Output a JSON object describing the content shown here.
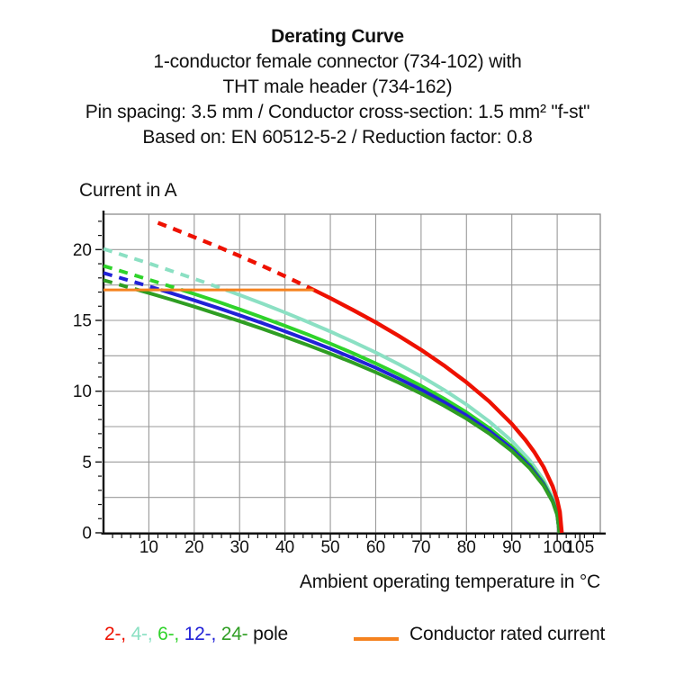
{
  "title": {
    "line1": "Derating Curve",
    "line2": "1-conductor female connector (734-102) with",
    "line3": "THT male header (734-162)",
    "line4": "Pin spacing: 3.5 mm / Conductor cross-section: 1.5 mm² \"f-st\"",
    "line5": "Based on: EN 60512-5-2 / Reduction factor: 0.8"
  },
  "legend": {
    "poles": [
      {
        "label": "2-,",
        "color": "#ee1100"
      },
      {
        "label": "4-,",
        "color": "#8be0c3"
      },
      {
        "label": "6-,",
        "color": "#2fd32a"
      },
      {
        "label": "12-,",
        "color": "#2121d7"
      },
      {
        "label": "24-",
        "color": "#2f9e23"
      }
    ],
    "poles_suffix": " pole",
    "rated_label": "Conductor rated current",
    "rated_color": "#f5821f"
  },
  "chart_data": {
    "type": "line",
    "title": "Derating Curve",
    "xlabel": "Ambient operating temperature in °C",
    "ylabel": "Current in A",
    "xlim": [
      0,
      109.5
    ],
    "ylim": [
      0,
      22.5
    ],
    "grid": "on",
    "grid_color": "#999999",
    "border_color": "#8c8c8c",
    "axis_color": "#111111",
    "text_color": "#111111",
    "tick_font_px": 19,
    "x_gridlines": [
      10,
      20,
      30,
      40,
      50,
      60,
      70,
      80,
      90,
      100
    ],
    "y_gridlines": [
      2.5,
      5,
      7.5,
      10,
      12.5,
      15,
      17.5,
      20
    ],
    "x_major_ticks": [
      10,
      20,
      30,
      40,
      50,
      60,
      70,
      80,
      90,
      100,
      105
    ],
    "x_minor_step": 2,
    "y_major_ticks": [
      0,
      5,
      10,
      15,
      20
    ],
    "y_minor_step": 1,
    "dash_pattern": "10 8",
    "dash_above_rated": true,
    "rated_current": {
      "label": "Conductor rated current",
      "value": 17.15,
      "x_start": 0,
      "x_end": 46.35,
      "color": "#f5821f",
      "width": 3
    },
    "series": [
      {
        "name": "4-pole",
        "color": "#8be0c3",
        "width": 4,
        "points": [
          [
            0,
            20.05
          ],
          [
            5,
            19.54
          ],
          [
            10,
            19.03
          ],
          [
            15,
            18.49
          ],
          [
            20,
            17.94
          ],
          [
            26.97,
            17.15
          ],
          [
            30,
            16.79
          ],
          [
            35,
            16.19
          ],
          [
            40,
            15.56
          ],
          [
            45,
            14.9
          ],
          [
            50,
            14.21
          ],
          [
            55,
            13.49
          ],
          [
            60,
            12.73
          ],
          [
            65,
            11.92
          ],
          [
            70,
            11.05
          ],
          [
            75,
            10.1
          ],
          [
            80,
            9.06
          ],
          [
            85,
            7.87
          ],
          [
            90,
            6.48
          ],
          [
            94,
            5.1
          ],
          [
            97,
            3.74
          ],
          [
            99,
            2.45
          ],
          [
            100,
            1.41
          ],
          [
            100.5,
            0
          ]
        ]
      },
      {
        "name": "6-pole",
        "color": "#2fd32a",
        "width": 4,
        "points": [
          [
            0,
            18.85
          ],
          [
            5,
            18.37
          ],
          [
            10,
            17.88
          ],
          [
            17.28,
            17.15
          ],
          [
            20,
            16.87
          ],
          [
            25,
            16.34
          ],
          [
            30,
            15.78
          ],
          [
            35,
            15.21
          ],
          [
            40,
            14.62
          ],
          [
            45,
            14.01
          ],
          [
            50,
            13.36
          ],
          [
            55,
            12.68
          ],
          [
            60,
            11.96
          ],
          [
            65,
            11.2
          ],
          [
            70,
            10.38
          ],
          [
            75,
            9.49
          ],
          [
            80,
            8.51
          ],
          [
            85,
            7.4
          ],
          [
            90,
            6.09
          ],
          [
            94,
            4.79
          ],
          [
            97,
            3.52
          ],
          [
            99,
            2.3
          ],
          [
            100,
            1.33
          ],
          [
            100.5,
            0
          ]
        ]
      },
      {
        "name": "12-pole",
        "color": "#2121d7",
        "width": 4,
        "points": [
          [
            0,
            18.35
          ],
          [
            5,
            17.88
          ],
          [
            10,
            17.41
          ],
          [
            12.68,
            17.15
          ],
          [
            15,
            16.92
          ],
          [
            20,
            16.42
          ],
          [
            25,
            15.9
          ],
          [
            30,
            15.36
          ],
          [
            35,
            14.81
          ],
          [
            40,
            14.23
          ],
          [
            45,
            13.63
          ],
          [
            50,
            13.0
          ],
          [
            55,
            12.34
          ],
          [
            60,
            11.65
          ],
          [
            65,
            10.9
          ],
          [
            70,
            10.11
          ],
          [
            75,
            9.24
          ],
          [
            80,
            8.29
          ],
          [
            85,
            7.2
          ],
          [
            90,
            5.93
          ],
          [
            94,
            4.67
          ],
          [
            97,
            3.42
          ],
          [
            99,
            2.24
          ],
          [
            100,
            1.29
          ],
          [
            100.5,
            0
          ]
        ]
      },
      {
        "name": "24-pole",
        "color": "#2f9e23",
        "width": 4,
        "points": [
          [
            0,
            17.84
          ],
          [
            5,
            17.39
          ],
          [
            7.66,
            17.15
          ],
          [
            10,
            16.93
          ],
          [
            15,
            16.46
          ],
          [
            20,
            15.97
          ],
          [
            25,
            15.46
          ],
          [
            30,
            14.95
          ],
          [
            35,
            14.41
          ],
          [
            40,
            13.84
          ],
          [
            45,
            13.26
          ],
          [
            50,
            12.65
          ],
          [
            55,
            12.01
          ],
          [
            60,
            11.33
          ],
          [
            65,
            10.61
          ],
          [
            70,
            9.83
          ],
          [
            75,
            8.99
          ],
          [
            80,
            8.06
          ],
          [
            85,
            7.01
          ],
          [
            90,
            5.77
          ],
          [
            94,
            4.54
          ],
          [
            97,
            3.33
          ],
          [
            99,
            2.18
          ],
          [
            100,
            1.26
          ],
          [
            100.5,
            0
          ]
        ]
      },
      {
        "name": "2-pole",
        "color": "#ee1100",
        "width": 4.4,
        "points": [
          [
            12,
            21.89
          ],
          [
            15,
            21.52
          ],
          [
            20,
            20.88
          ],
          [
            25,
            20.23
          ],
          [
            30,
            19.55
          ],
          [
            35,
            18.85
          ],
          [
            40,
            18.12
          ],
          [
            46.35,
            17.15
          ],
          [
            50,
            16.57
          ],
          [
            55,
            15.73
          ],
          [
            60,
            14.86
          ],
          [
            65,
            13.92
          ],
          [
            70,
            12.92
          ],
          [
            75,
            11.83
          ],
          [
            80,
            10.63
          ],
          [
            85,
            9.28
          ],
          [
            90,
            7.69
          ],
          [
            93,
            6.56
          ],
          [
            95,
            5.68
          ],
          [
            97,
            4.64
          ],
          [
            99,
            3.28
          ],
          [
            100,
            2.32
          ],
          [
            100.6,
            1.47
          ],
          [
            101,
            0
          ]
        ]
      }
    ]
  }
}
